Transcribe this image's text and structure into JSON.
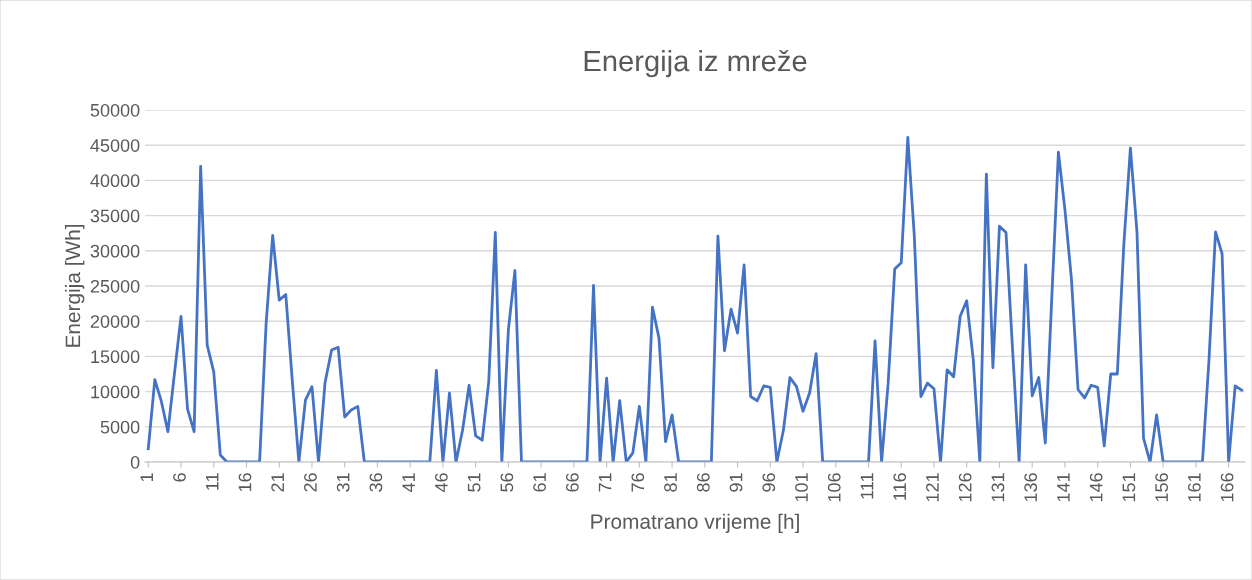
{
  "chart_data": {
    "type": "line",
    "title": "Energija iz mreže",
    "xlabel": "Promatrano vrijeme [h]",
    "ylabel": "Energija [Wh]",
    "categories": [
      "1",
      null,
      null,
      null,
      null,
      "6",
      null,
      null,
      null,
      null,
      "11",
      null,
      null,
      null,
      null,
      "16",
      null,
      null,
      null,
      null,
      "21",
      null,
      null,
      null,
      null,
      "26",
      null,
      null,
      null,
      null,
      "31",
      null,
      null,
      null,
      null,
      "36",
      null,
      null,
      null,
      null,
      "41",
      null,
      null,
      null,
      null,
      "46",
      null,
      null,
      null,
      null,
      "51",
      null,
      null,
      null,
      null,
      "56",
      null,
      null,
      null,
      null,
      "61",
      null,
      null,
      null,
      null,
      "66",
      null,
      null,
      null,
      null,
      "71",
      null,
      null,
      null,
      null,
      "76",
      null,
      null,
      null,
      null,
      "81",
      null,
      null,
      null,
      null,
      "86",
      null,
      null,
      null,
      null,
      "91",
      null,
      null,
      null,
      null,
      "96",
      null,
      null,
      null,
      null,
      "101",
      null,
      null,
      null,
      null,
      "106",
      null,
      null,
      null,
      null,
      "111",
      null,
      null,
      null,
      null,
      "116",
      null,
      null,
      null,
      null,
      "121",
      null,
      null,
      null,
      null,
      "126",
      null,
      null,
      null,
      null,
      "131",
      null,
      null,
      null,
      null,
      "136",
      null,
      null,
      null,
      null,
      "141",
      null,
      null,
      null,
      null,
      "146",
      null,
      null,
      null,
      null,
      "151",
      null,
      null,
      null,
      null,
      "156",
      null,
      null,
      null,
      null,
      "161",
      null,
      null,
      null,
      null,
      "166",
      null,
      null
    ],
    "series": [
      {
        "color": "#4472c4",
        "values": [
          1900,
          11700,
          8600,
          4300,
          12600,
          20700,
          7500,
          4300,
          42000,
          16600,
          12800,
          1000,
          0,
          0,
          0,
          0,
          0,
          0,
          19700,
          32200,
          23000,
          23800,
          11500,
          0,
          8800,
          10700,
          0,
          11300,
          15900,
          16300,
          6400,
          7400,
          7900,
          0,
          0,
          0,
          0,
          0,
          0,
          0,
          0,
          0,
          0,
          0,
          13000,
          0,
          9800,
          0,
          4500,
          10900,
          3700,
          3100,
          11400,
          32600,
          0,
          18800,
          27200,
          0,
          0,
          0,
          0,
          0,
          0,
          0,
          0,
          0,
          0,
          0,
          25100,
          0,
          11900,
          0,
          8700,
          0,
          1300,
          7900,
          0,
          22000,
          17600,
          2900,
          6700,
          0,
          0,
          0,
          0,
          0,
          0,
          32100,
          15800,
          21700,
          18300,
          28000,
          9300,
          8700,
          10800,
          10600,
          0,
          4500,
          12000,
          10700,
          7200,
          9800,
          15400,
          0,
          0,
          0,
          0,
          0,
          0,
          0,
          0,
          17200,
          0,
          11200,
          27400,
          28300,
          46100,
          32000,
          9300,
          11200,
          10400,
          0,
          13100,
          12100,
          20700,
          22900,
          14500,
          0,
          40900,
          13400,
          33500,
          32600,
          16000,
          0,
          28000,
          9400,
          12000,
          2700,
          23500,
          44000,
          35800,
          25900,
          10300,
          9100,
          10900,
          10600,
          2300,
          12500,
          12500,
          31000,
          44600,
          32700,
          3400,
          0,
          6700,
          0,
          0,
          0,
          0,
          0,
          0,
          0,
          14500,
          32700,
          29600,
          0,
          10800,
          10200
        ]
      }
    ],
    "ylim": [
      0,
      50000
    ],
    "yticks": [
      0,
      5000,
      10000,
      15000,
      20000,
      25000,
      30000,
      35000,
      40000,
      45000,
      50000
    ],
    "grid": "y",
    "marker": "none",
    "line_style": "solid"
  }
}
